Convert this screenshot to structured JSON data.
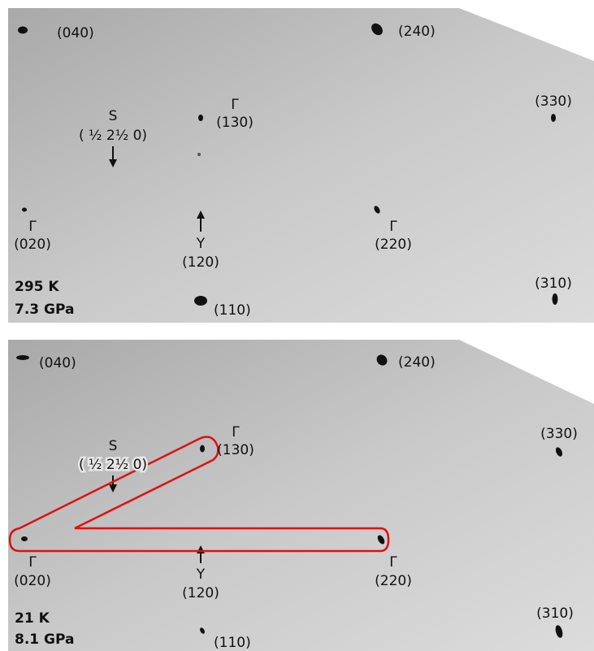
{
  "panels": [
    {
      "condition": {
        "temperature": "295 K",
        "pressure": "7.3 GPa"
      },
      "labels": [
        "(040)",
        "(240)",
        "Γ",
        "(130)",
        "S",
        "( ½ 2½ 0)",
        "(330)",
        "Γ",
        "(020)",
        "Y",
        "(120)",
        "Γ",
        "(220)",
        "(310)",
        "(110)"
      ]
    },
    {
      "condition": {
        "temperature": "21 K",
        "pressure": "8.1 GPa"
      },
      "labels": [
        "(040)",
        "(240)",
        "Γ",
        "(130)",
        "S",
        "( ½ 2½ 0)",
        "(330)",
        "Γ",
        "(020)",
        "Y",
        "(120)",
        "Γ",
        "(220)",
        "(310)",
        "(110)"
      ]
    }
  ]
}
